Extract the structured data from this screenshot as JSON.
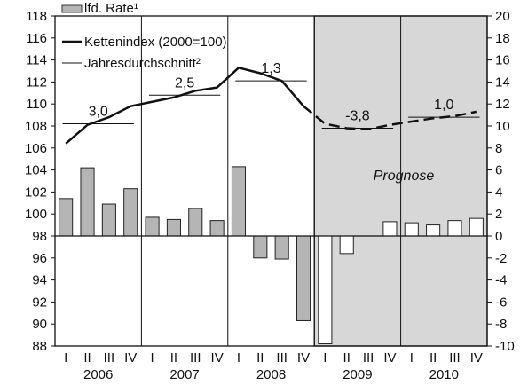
{
  "chart_data": {
    "type": "bar",
    "title": "",
    "left_axis": {
      "min": 88,
      "max": 118,
      "step": 2,
      "ticks": [
        88,
        90,
        92,
        94,
        96,
        98,
        100,
        102,
        104,
        106,
        108,
        110,
        112,
        114,
        116,
        118
      ]
    },
    "right_axis": {
      "min": -10,
      "max": 20,
      "step": 2,
      "ticks": [
        -10,
        -8,
        -6,
        -4,
        -2,
        0,
        2,
        4,
        6,
        8,
        10,
        12,
        14,
        16,
        18,
        20
      ]
    },
    "quarters": [
      "I",
      "II",
      "III",
      "IV",
      "I",
      "II",
      "III",
      "IV",
      "I",
      "II",
      "III",
      "IV",
      "I",
      "II",
      "III",
      "IV",
      "I",
      "II",
      "III",
      "IV"
    ],
    "years": [
      "2006",
      "2007",
      "2008",
      "2009",
      "2010"
    ],
    "legend": [
      "lfd. Rate¹",
      "Kettenindex (2000=100)",
      "Jahresdurchschnitt²"
    ],
    "forecast_label": "Prognose",
    "forecast_from_index": 12,
    "series": [
      {
        "name": "lfd. Rate¹",
        "axis": "right",
        "kind": "bar",
        "values": [
          3.4,
          6.2,
          2.9,
          4.3,
          1.7,
          1.5,
          2.5,
          1.4,
          6.3,
          -2.0,
          -2.1,
          -7.7,
          -9.8,
          -1.6,
          0.0,
          1.3,
          1.2,
          1.0,
          1.4,
          1.6
        ]
      },
      {
        "name": "Kettenindex (2000=100)",
        "axis": "left",
        "kind": "line",
        "values": [
          106.4,
          108.1,
          108.8,
          109.8,
          110.2,
          110.6,
          111.2,
          111.5,
          113.3,
          112.8,
          112.1,
          109.8,
          108.2,
          107.8,
          107.7,
          108.1,
          108.4,
          108.7,
          108.9,
          109.3
        ]
      },
      {
        "name": "Jahresdurchschnitt²",
        "axis": "left",
        "kind": "annual_average",
        "averages": [
          {
            "year": "2006",
            "value": 108.2,
            "label": "3,0"
          },
          {
            "year": "2007",
            "value": 110.8,
            "label": "2,5"
          },
          {
            "year": "2008",
            "value": 112.1,
            "label": "1,3"
          },
          {
            "year": "2009",
            "value": 107.8,
            "label": "-3,8"
          },
          {
            "year": "2010",
            "value": 108.8,
            "label": "1,0"
          }
        ]
      }
    ]
  }
}
